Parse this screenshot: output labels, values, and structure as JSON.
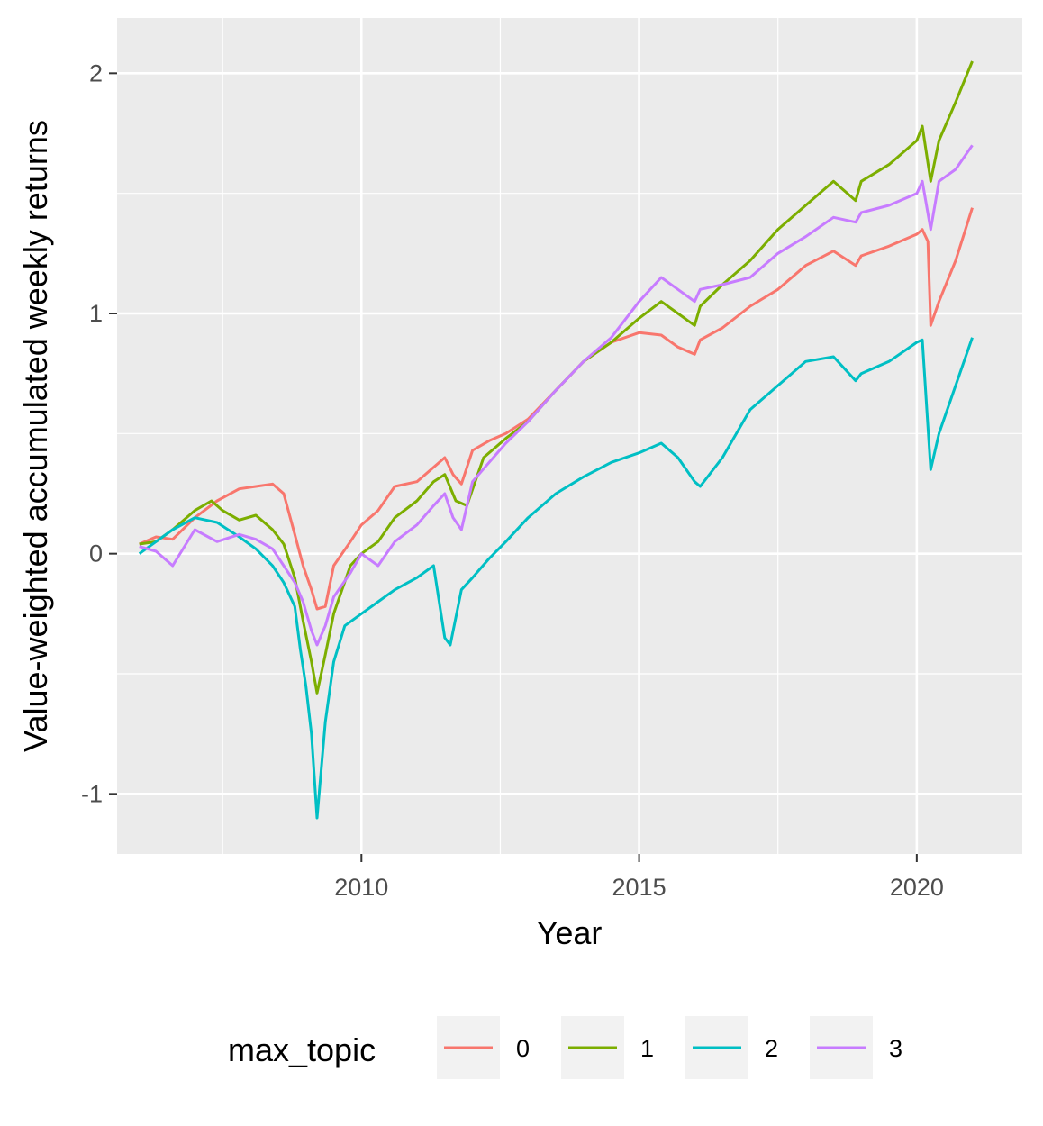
{
  "chart_data": {
    "type": "line",
    "title": "",
    "xlabel": "Year",
    "ylabel": "Value-weighted accumulated weekly returns",
    "xlim": [
      2005.6,
      2021.9
    ],
    "ylim": [
      -1.25,
      2.23
    ],
    "x_ticks": [
      2010,
      2015,
      2020
    ],
    "x_tick_labels": [
      "2010",
      "2015",
      "2020"
    ],
    "y_ticks": [
      -1,
      0,
      1,
      2
    ],
    "y_tick_labels": [
      "-1",
      "0",
      "1",
      "2"
    ],
    "grid": true,
    "legend": {
      "title": "max_topic",
      "position": "bottom"
    },
    "series": [
      {
        "name": "0",
        "color": "#F8766D",
        "x": [
          2006.0,
          2006.3,
          2006.6,
          2007.0,
          2007.4,
          2007.8,
          2008.1,
          2008.4,
          2008.6,
          2008.8,
          2008.95,
          2009.1,
          2009.2,
          2009.35,
          2009.5,
          2009.8,
          2010.0,
          2010.3,
          2010.6,
          2011.0,
          2011.3,
          2011.5,
          2011.65,
          2011.8,
          2012.0,
          2012.3,
          2012.6,
          2013.0,
          2013.5,
          2014.0,
          2014.5,
          2015.0,
          2015.4,
          2015.7,
          2016.0,
          2016.1,
          2016.5,
          2017.0,
          2017.5,
          2018.0,
          2018.5,
          2018.9,
          2019.0,
          2019.5,
          2020.0,
          2020.1,
          2020.2,
          2020.25,
          2020.4,
          2020.7,
          2021.0
        ],
        "y": [
          0.04,
          0.07,
          0.06,
          0.15,
          0.22,
          0.27,
          0.28,
          0.29,
          0.25,
          0.08,
          -0.05,
          -0.15,
          -0.23,
          -0.22,
          -0.05,
          0.05,
          0.12,
          0.18,
          0.28,
          0.3,
          0.36,
          0.4,
          0.33,
          0.29,
          0.43,
          0.47,
          0.5,
          0.56,
          0.68,
          0.8,
          0.88,
          0.92,
          0.91,
          0.86,
          0.83,
          0.89,
          0.94,
          1.03,
          1.1,
          1.2,
          1.26,
          1.2,
          1.24,
          1.28,
          1.33,
          1.35,
          1.3,
          0.95,
          1.05,
          1.22,
          1.44
        ]
      },
      {
        "name": "1",
        "color": "#7CAE00",
        "x": [
          2006.0,
          2006.3,
          2006.6,
          2007.0,
          2007.3,
          2007.5,
          2007.8,
          2008.1,
          2008.4,
          2008.6,
          2008.8,
          2008.95,
          2009.1,
          2009.2,
          2009.35,
          2009.5,
          2009.8,
          2010.0,
          2010.3,
          2010.6,
          2011.0,
          2011.3,
          2011.5,
          2011.7,
          2011.9,
          2012.2,
          2012.6,
          2013.0,
          2013.5,
          2014.0,
          2014.5,
          2015.0,
          2015.4,
          2015.7,
          2016.0,
          2016.1,
          2016.5,
          2017.0,
          2017.5,
          2018.0,
          2018.5,
          2018.9,
          2019.0,
          2019.5,
          2020.0,
          2020.1,
          2020.25,
          2020.4,
          2020.7,
          2021.0
        ],
        "y": [
          0.04,
          0.05,
          0.1,
          0.18,
          0.22,
          0.18,
          0.14,
          0.16,
          0.1,
          0.04,
          -0.1,
          -0.28,
          -0.45,
          -0.58,
          -0.42,
          -0.25,
          -0.05,
          0.0,
          0.05,
          0.15,
          0.22,
          0.3,
          0.33,
          0.22,
          0.2,
          0.4,
          0.48,
          0.55,
          0.68,
          0.8,
          0.88,
          0.98,
          1.05,
          1.0,
          0.95,
          1.03,
          1.12,
          1.22,
          1.35,
          1.45,
          1.55,
          1.47,
          1.55,
          1.62,
          1.72,
          1.78,
          1.55,
          1.72,
          1.88,
          2.05
        ]
      },
      {
        "name": "2",
        "color": "#00BFC4",
        "x": [
          2006.0,
          2006.3,
          2006.6,
          2007.0,
          2007.4,
          2007.8,
          2008.1,
          2008.4,
          2008.6,
          2008.8,
          2008.9,
          2009.0,
          2009.1,
          2009.2,
          2009.35,
          2009.5,
          2009.7,
          2010.0,
          2010.3,
          2010.6,
          2011.0,
          2011.3,
          2011.5,
          2011.6,
          2011.8,
          2012.0,
          2012.3,
          2012.6,
          2013.0,
          2013.5,
          2014.0,
          2014.5,
          2015.0,
          2015.4,
          2015.7,
          2016.0,
          2016.1,
          2016.5,
          2017.0,
          2017.5,
          2018.0,
          2018.5,
          2018.9,
          2019.0,
          2019.5,
          2020.0,
          2020.1,
          2020.25,
          2020.4,
          2020.7,
          2021.0
        ],
        "y": [
          0.0,
          0.05,
          0.1,
          0.15,
          0.13,
          0.07,
          0.02,
          -0.05,
          -0.12,
          -0.22,
          -0.4,
          -0.55,
          -0.75,
          -1.1,
          -0.7,
          -0.45,
          -0.3,
          -0.25,
          -0.2,
          -0.15,
          -0.1,
          -0.05,
          -0.35,
          -0.38,
          -0.15,
          -0.1,
          -0.02,
          0.05,
          0.15,
          0.25,
          0.32,
          0.38,
          0.42,
          0.46,
          0.4,
          0.3,
          0.28,
          0.4,
          0.6,
          0.7,
          0.8,
          0.82,
          0.72,
          0.75,
          0.8,
          0.88,
          0.89,
          0.35,
          0.5,
          0.7,
          0.9
        ]
      },
      {
        "name": "3",
        "color": "#C77CFF",
        "x": [
          2006.0,
          2006.3,
          2006.6,
          2007.0,
          2007.4,
          2007.8,
          2008.1,
          2008.4,
          2008.6,
          2008.8,
          2008.95,
          2009.1,
          2009.2,
          2009.35,
          2009.5,
          2009.8,
          2010.0,
          2010.3,
          2010.6,
          2011.0,
          2011.3,
          2011.5,
          2011.65,
          2011.8,
          2012.0,
          2012.3,
          2012.6,
          2013.0,
          2013.5,
          2014.0,
          2014.5,
          2015.0,
          2015.4,
          2015.7,
          2016.0,
          2016.1,
          2016.5,
          2017.0,
          2017.5,
          2018.0,
          2018.5,
          2018.9,
          2019.0,
          2019.5,
          2020.0,
          2020.1,
          2020.25,
          2020.4,
          2020.7,
          2021.0
        ],
        "y": [
          0.03,
          0.01,
          -0.05,
          0.1,
          0.05,
          0.08,
          0.06,
          0.02,
          -0.05,
          -0.12,
          -0.2,
          -0.32,
          -0.38,
          -0.3,
          -0.18,
          -0.08,
          0.0,
          -0.05,
          0.05,
          0.12,
          0.2,
          0.25,
          0.15,
          0.1,
          0.3,
          0.38,
          0.46,
          0.55,
          0.68,
          0.8,
          0.9,
          1.05,
          1.15,
          1.1,
          1.05,
          1.1,
          1.12,
          1.15,
          1.25,
          1.32,
          1.4,
          1.38,
          1.42,
          1.45,
          1.5,
          1.55,
          1.35,
          1.55,
          1.6,
          1.7
        ]
      }
    ]
  }
}
